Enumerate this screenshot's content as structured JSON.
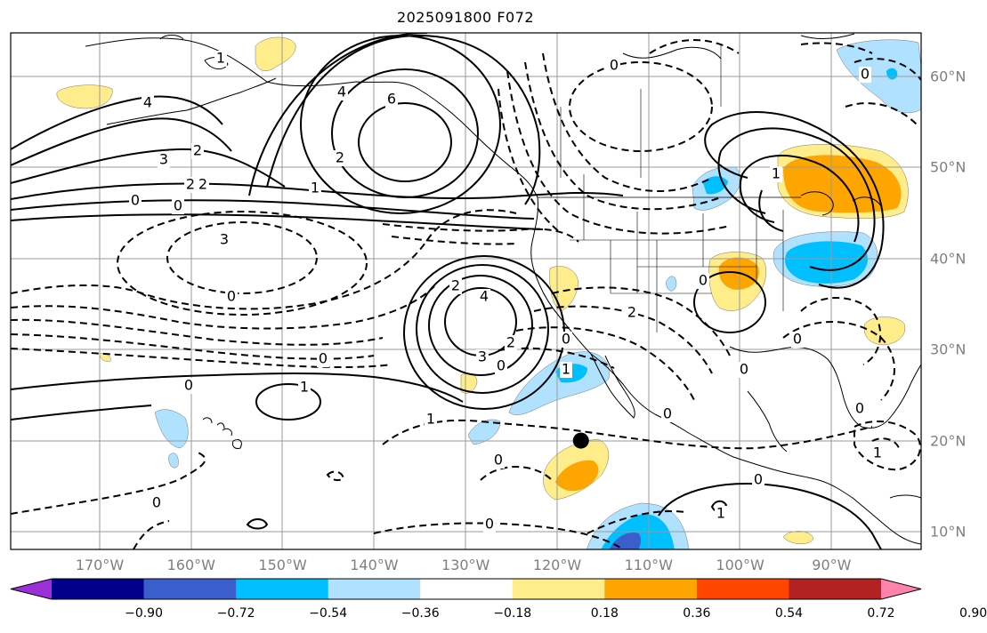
{
  "title": "2025091800 F072",
  "longitude_labels": [
    "170°W",
    "160°W",
    "150°W",
    "140°W",
    "130°W",
    "120°W",
    "110°W",
    "100°W",
    "90°W"
  ],
  "latitude_labels": [
    "60°N",
    "50°N",
    "40°N",
    "30°N",
    "20°N",
    "10°N"
  ],
  "colorbar": {
    "ticks": [
      "−0.90",
      "−0.72",
      "−0.54",
      "−0.36",
      "−0.18",
      "0.18",
      "0.36",
      "0.54",
      "0.72",
      "0.90"
    ],
    "colors": [
      "#9b30d9",
      "#00008b",
      "#3a5fcd",
      "#00bfff",
      "#b0e2ff",
      "#ffffff",
      "#ffec8b",
      "#ffa500",
      "#ff4500",
      "#b22222",
      "#ff83aa"
    ]
  },
  "contour_labels": [
    "1",
    "4",
    "6",
    "2",
    "3",
    "2",
    "0",
    "2",
    "0",
    "1",
    "2",
    "4",
    "3",
    "0",
    "0",
    "1",
    "4",
    "3",
    "2",
    "0",
    "2",
    "2",
    "0",
    "1",
    "0",
    "1",
    "0",
    "0",
    "0",
    "0",
    "1",
    "0",
    "1",
    "0",
    "0",
    "0",
    "1",
    "0",
    "0",
    "0"
  ],
  "marker": {
    "name": "point",
    "lon": -117.4,
    "lat": 20.0
  }
}
